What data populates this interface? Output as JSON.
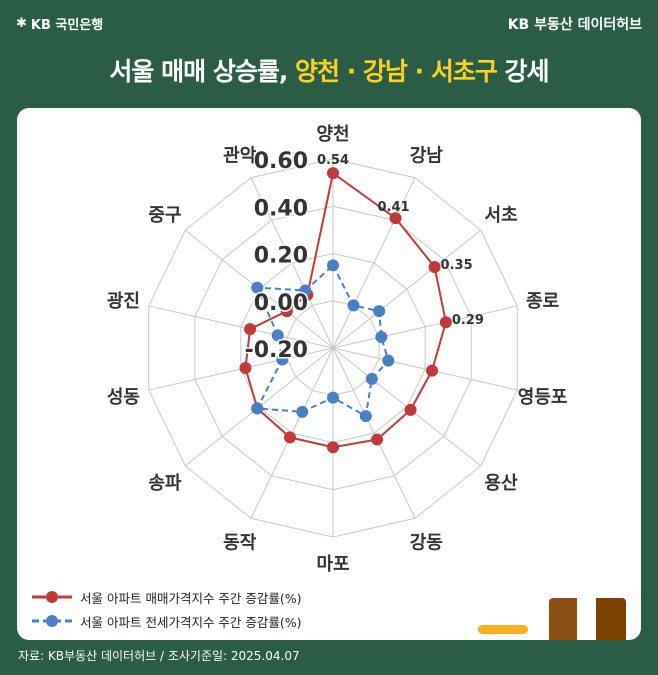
{
  "header": {
    "bank_logo": "KB 국민은행",
    "hub": "KB 부동산 데이터허브"
  },
  "title": {
    "part1": "서울 매매 상승률, ",
    "highlight": "양천 · 강남 · 서초구",
    "part2": " 강세"
  },
  "colors": {
    "background": "#2b5c45",
    "highlight": "#ffd21f",
    "sale": "#c0393b",
    "jeonse": "#4a7fc4"
  },
  "chart_data": {
    "type": "radar",
    "categories": [
      "양천",
      "강남",
      "서초",
      "종로",
      "영등포",
      "용산",
      "강동",
      "마포",
      "동작",
      "송파",
      "성동",
      "광진",
      "중구",
      "관악"
    ],
    "rlim": [
      -0.2,
      0.6
    ],
    "ticks": [
      "0.60",
      "0.40",
      "0.20",
      "0.00",
      "-0.20"
    ],
    "tick_values": [
      0.6,
      0.4,
      0.2,
      0.0,
      -0.2
    ],
    "series": [
      {
        "name": "서울 아파트 매매가격지수 주간 증감률(%)",
        "style": "solid",
        "values": [
          0.54,
          0.41,
          0.35,
          0.29,
          0.23,
          0.22,
          0.23,
          0.22,
          0.22,
          0.21,
          0.18,
          0.16,
          0.05,
          0.05
        ],
        "labels": [
          "0.54",
          "0.41",
          "0.35",
          "0.29"
        ]
      },
      {
        "name": "서울 아파트 전세가격지수 주간 증감률(%)",
        "style": "dashed",
        "values": [
          0.15,
          0.0,
          0.05,
          0.01,
          0.04,
          0.01,
          0.12,
          0.01,
          0.1,
          0.21,
          0.02,
          0.04,
          0.21,
          0.07
        ]
      }
    ]
  },
  "footer": "자료: KB부동산 데이터허브 / 조사기준일: 2025.04.07"
}
